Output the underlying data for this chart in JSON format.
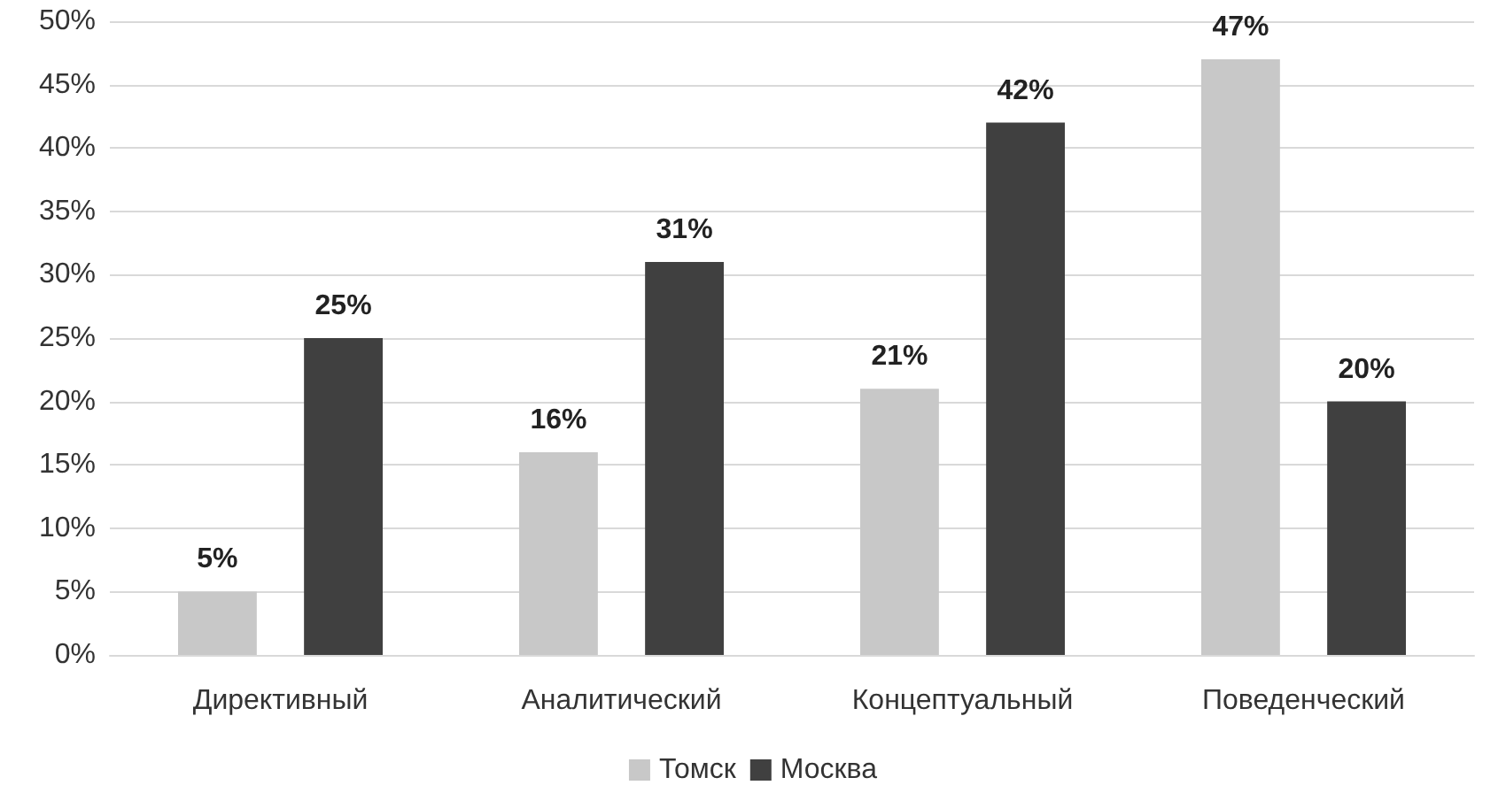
{
  "chart_data": {
    "type": "bar",
    "categories": [
      "Директивный",
      "Аналитический",
      "Концептуальный",
      "Поведенческий"
    ],
    "series": [
      {
        "name": "Томск",
        "color": "#c8c8c8",
        "values": [
          5,
          16,
          21,
          47
        ],
        "value_labels": [
          "5%",
          "16%",
          "21%",
          "47%"
        ]
      },
      {
        "name": "Москва",
        "color": "#404040",
        "values": [
          25,
          31,
          42,
          20
        ],
        "value_labels": [
          "25%",
          "31%",
          "42%",
          "20%"
        ]
      }
    ],
    "ylim": [
      0,
      50
    ],
    "yticks": [
      {
        "value": 0,
        "label": "0%"
      },
      {
        "value": 5,
        "label": "5%"
      },
      {
        "value": 10,
        "label": "10%"
      },
      {
        "value": 15,
        "label": "15%"
      },
      {
        "value": 20,
        "label": "20%"
      },
      {
        "value": 25,
        "label": "25%"
      },
      {
        "value": 30,
        "label": "30%"
      },
      {
        "value": 35,
        "label": "35%"
      },
      {
        "value": 40,
        "label": "40%"
      },
      {
        "value": 45,
        "label": "45%"
      },
      {
        "value": 50,
        "label": "50%"
      }
    ],
    "grid": "y",
    "legend": "bottom"
  }
}
